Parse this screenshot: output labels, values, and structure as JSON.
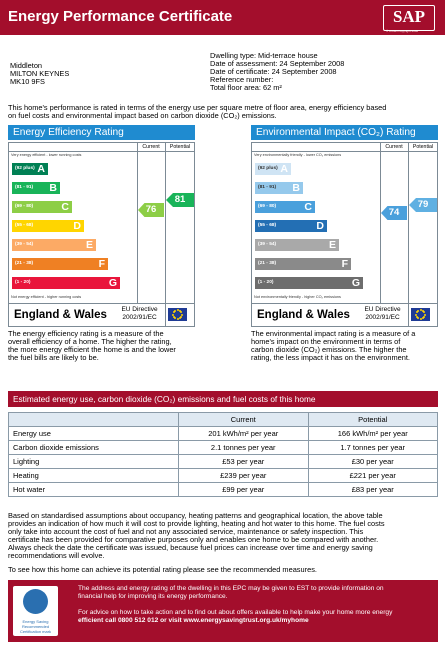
{
  "header": {
    "title": "Energy Performance Certificate",
    "logo": "SAP",
    "logo_sub": "© Crown copyright 2006"
  },
  "address": [
    "Middleton",
    "MILTON KEYNES",
    "MK10 9FS"
  ],
  "details": [
    "Dwelling type: Mid-terrace house",
    "Date of assessment: 24 September 2008",
    "Date of certificate: 24 September 2008",
    "Reference number:",
    "Total floor area: 62 m²"
  ],
  "intro": [
    "This home's performance is rated in terms of the energy use per square metre of floor area, energy efficiency based",
    "on fuel costs and environmental impact based on carbon dioxide (CO₂) emissions."
  ],
  "col_current": "Current",
  "col_potential": "Potential",
  "eer": {
    "title": "Energy Efficiency Rating",
    "top_note": "Very energy efficient - lower running costs",
    "bottom_note": "Not energy efficient - higher running costs",
    "bands": [
      {
        "range": "(92 plus)",
        "letter": "A",
        "color": "#008054"
      },
      {
        "range": "(81 - 91)",
        "letter": "B",
        "color": "#19b459"
      },
      {
        "range": "(69 - 80)",
        "letter": "C",
        "color": "#8dce46"
      },
      {
        "range": "(55 - 68)",
        "letter": "D",
        "color": "#ffd500"
      },
      {
        "range": "(39 - 54)",
        "letter": "E",
        "color": "#fcaa65"
      },
      {
        "range": "(21 - 38)",
        "letter": "F",
        "color": "#ef8023"
      },
      {
        "range": "(1 - 20)",
        "letter": "G",
        "color": "#e9153b"
      }
    ],
    "current": "76",
    "potential": "81",
    "current_color": "#8dce46",
    "potential_color": "#19b459",
    "footer": "England & Wales",
    "directive": [
      "EU Directive",
      "2002/91/EC"
    ],
    "desc": [
      "The energy efficiency rating is a measure of the",
      "overall efficiency of a home. The higher the rating,",
      "the more energy efficient the home is and the lower",
      "the fuel bills are likely to be."
    ]
  },
  "eir": {
    "title": "Environmental Impact (CO₂) Rating",
    "top_note": "Very environmentally friendly - lower CO₂ emissions",
    "bottom_note": "Not environmentally friendly - higher CO₂ emissions",
    "bands": [
      {
        "range": "(92 plus)",
        "letter": "A",
        "color": "#cfe4f4"
      },
      {
        "range": "(81 - 91)",
        "letter": "B",
        "color": "#95c9ec"
      },
      {
        "range": "(69 - 80)",
        "letter": "C",
        "color": "#4aa0dc"
      },
      {
        "range": "(55 - 68)",
        "letter": "D",
        "color": "#236fb4"
      },
      {
        "range": "(39 - 54)",
        "letter": "E",
        "color": "#a9a9a9"
      },
      {
        "range": "(21 - 38)",
        "letter": "F",
        "color": "#8a8a8a"
      },
      {
        "range": "(1 - 20)",
        "letter": "G",
        "color": "#6d6d6d"
      }
    ],
    "current": "74",
    "potential": "79",
    "current_color": "#4aa0dc",
    "potential_color": "#4aa0dc",
    "footer": "England & Wales",
    "directive": [
      "EU Directive",
      "2002/91/EC"
    ],
    "desc": [
      "The environmental impact rating is a measure of a",
      "home's impact on the environment in terms of",
      "carbon dioxide (CO₂) emissions. The higher the",
      "rating, the less impact it has on the environment."
    ]
  },
  "costs": {
    "title": "Estimated energy use, carbon dioxide (CO₂) emissions and fuel costs of this home",
    "headers": [
      "",
      "Current",
      "Potential"
    ],
    "rows": [
      [
        "Energy use",
        "201 kWh/m² per year",
        "166 kWh/m² per year"
      ],
      [
        "Carbon dioxide emissions",
        "2.1 tonnes per year",
        "1.7 tonnes per year"
      ],
      [
        "Lighting",
        "£53 per year",
        "£30 per year"
      ],
      [
        "Heating",
        "£239 per year",
        "£221 per year"
      ],
      [
        "Hot water",
        "£99 per year",
        "£83 per year"
      ]
    ]
  },
  "basis": [
    "Based on standardised assumptions about occupancy, heating patterns and geographical location, the above table",
    "provides an indication of how much it will cost to provide lighting, heating and hot water to this home. The fuel costs",
    "only take into account the cost of fuel and not any associated service, maintenance or safety inspection. This",
    "certificate has been provided for comparative purposes only and enables one home to be compared with another.",
    "Always check the date the certificate was issued, because fuel prices can increase over time and energy saving",
    "recommendations will evolve."
  ],
  "see": "To see how this home can achieve its potential rating please see the recommended measures.",
  "footer": {
    "logo_text": [
      "Energy Saving",
      "Recommended",
      "Certification mark"
    ],
    "p1": [
      "The address and energy rating of the dwelling in this EPC may be given to EST to provide information on",
      "financial help for improving its energy performance."
    ],
    "p2": [
      "For advice on how to take action and to find out about offers available to help make your home more energy",
      "efficient call 0800 512 012 or visit www.energysavingtrust.org.uk/myhome"
    ]
  }
}
